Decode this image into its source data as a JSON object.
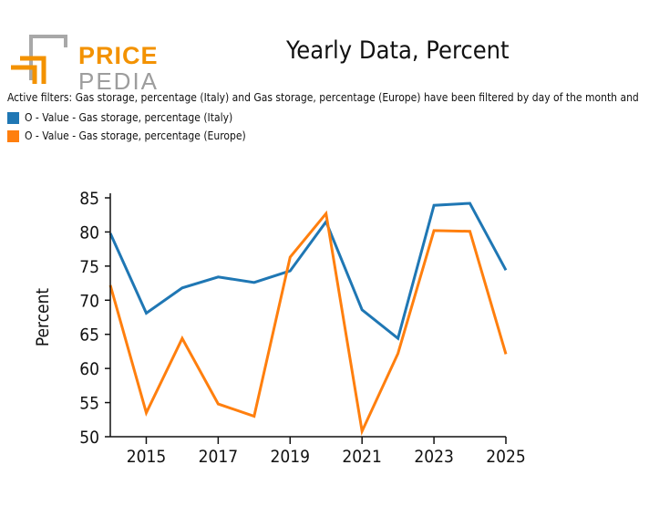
{
  "logo": {
    "line1": "PRICE",
    "line2": "PEDIA"
  },
  "filters_text": "Active filters: Gas storage, percentage (Italy) and Gas storage, percentage (Europe) have been filtered by day of the month and",
  "chart_data": {
    "type": "line",
    "title": "Yearly Data, Percent",
    "xlabel": "",
    "ylabel": "Percent",
    "x": [
      2014,
      2015,
      2016,
      2017,
      2018,
      2019,
      2020,
      2021,
      2022,
      2023,
      2024,
      2025
    ],
    "xlim": [
      2014,
      2025
    ],
    "ylim": [
      50,
      85
    ],
    "xticks": [
      2015,
      2017,
      2019,
      2021,
      2023,
      2025
    ],
    "yticks": [
      50,
      55,
      60,
      65,
      70,
      75,
      80,
      85
    ],
    "legend_position": "top-left",
    "series": [
      {
        "name": "O - Value - Gas storage, percentage (Italy)",
        "color": "#1f77b4",
        "values": [
          79.8,
          68.1,
          71.8,
          73.4,
          72.6,
          74.3,
          81.5,
          68.6,
          64.4,
          83.9,
          84.2,
          74.4
        ]
      },
      {
        "name": "O - Value - Gas storage, percentage (Europe)",
        "color": "#ff7f0e",
        "values": [
          72.2,
          53.5,
          64.4,
          54.8,
          53.0,
          76.3,
          82.7,
          50.8,
          62.2,
          80.2,
          80.1,
          62.1
        ]
      }
    ]
  }
}
